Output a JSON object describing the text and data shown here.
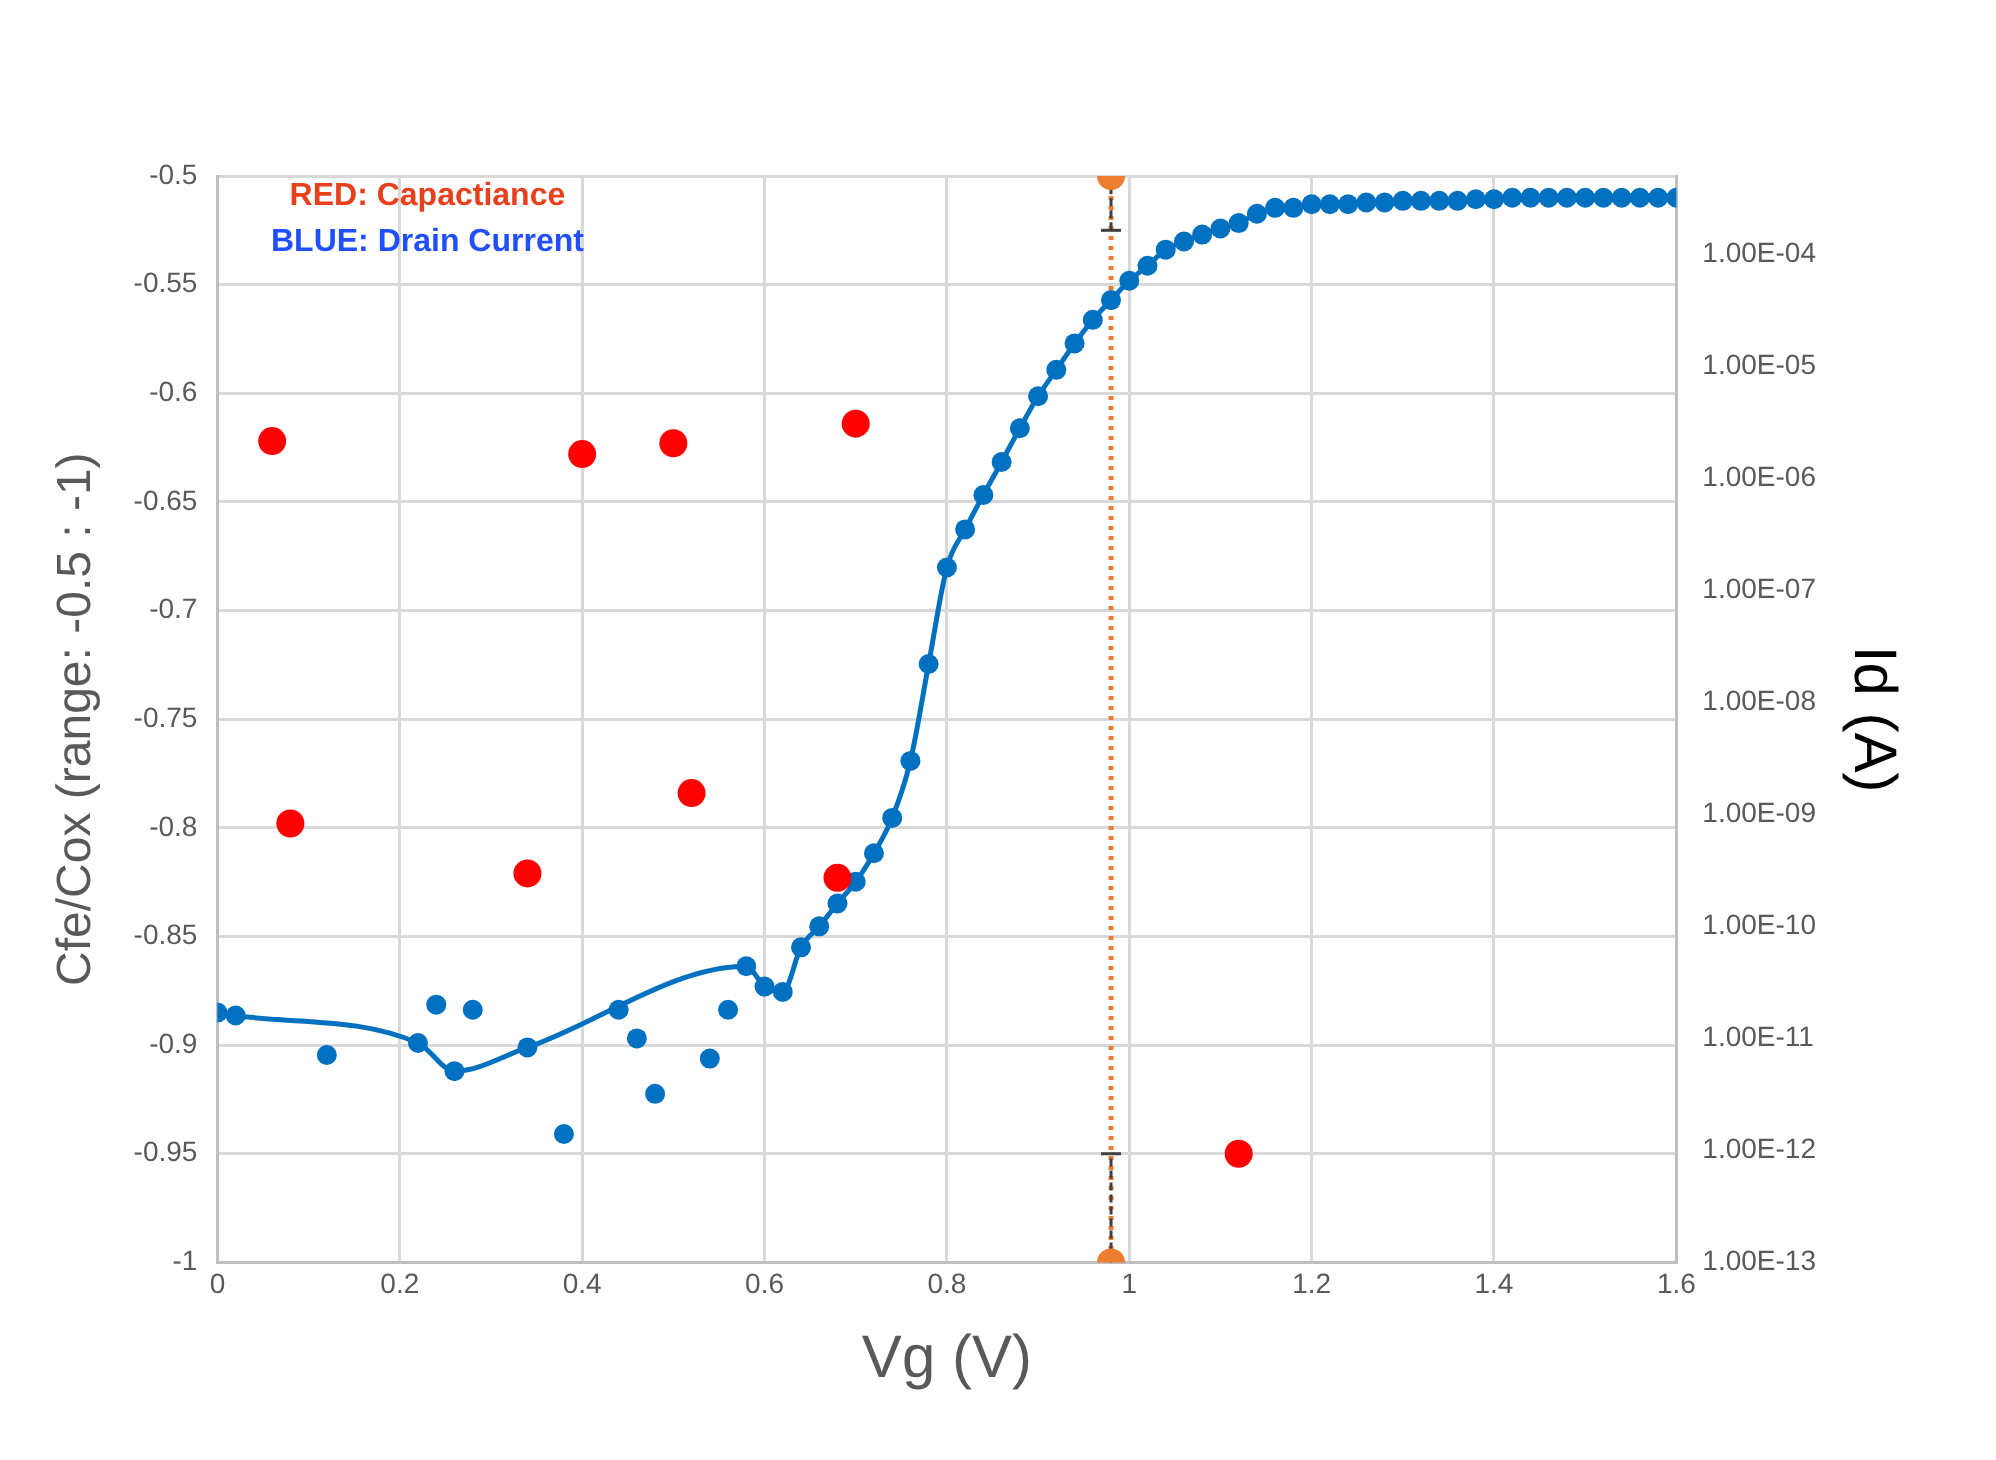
{
  "chart_data": {
    "type": "scatter",
    "xlabel": "Vg (V)",
    "ylabel": "Cfe/Cox (range: -0.5 : -1)",
    "y2label": "Id (A)",
    "xlim": [
      0,
      1.6
    ],
    "xticks": [
      0,
      0.2,
      0.4,
      0.6,
      0.8,
      1,
      1.2,
      1.4,
      1.6
    ],
    "ylim": [
      -1,
      -0.5
    ],
    "yticks": [
      -1,
      -0.95,
      -0.9,
      -0.85,
      -0.8,
      -0.75,
      -0.7,
      -0.65,
      -0.6,
      -0.55,
      -0.5
    ],
    "y2lim": [
      1e-13,
      0.0005
    ],
    "y2ticks": [
      {
        "value": 1e-13,
        "label": "1.00E-13"
      },
      {
        "value": 1e-12,
        "label": "1.00E-12"
      },
      {
        "value": 1e-11,
        "label": "1.00E-11"
      },
      {
        "value": 1e-10,
        "label": "1.00E-10"
      },
      {
        "value": 1e-09,
        "label": "1.00E-09"
      },
      {
        "value": 1e-08,
        "label": "1.00E-08"
      },
      {
        "value": 1e-07,
        "label": "1.00E-07"
      },
      {
        "value": 1e-06,
        "label": "1.00E-06"
      },
      {
        "value": 1e-05,
        "label": "1.00E-05"
      },
      {
        "value": 0.0001,
        "label": "1.00E-04"
      }
    ],
    "log": "y2",
    "grid": true,
    "legend": false,
    "marker": "circle",
    "ref_lines": [
      {
        "axis": "x",
        "value": 0.98,
        "color": "#ed7d31",
        "line_style": "dotted"
      }
    ],
    "annotations": [
      "RED: Capactiance",
      "BLUE: Drain Current"
    ],
    "series": [
      {
        "color": "#ff0000",
        "x": [
          0.06,
          0.08,
          0.34,
          0.4,
          0.5,
          0.52,
          0.68,
          0.7,
          1.12
        ],
        "values": [
          -0.622,
          -0.798,
          -0.821,
          -0.628,
          -0.623,
          -0.784,
          -0.823,
          -0.614,
          -0.95
        ]
      },
      {
        "type": "line",
        "axis": "y2",
        "color": "#0070c0",
        "x": [
          0,
          0.02,
          0.22,
          0.26,
          0.34,
          0.58,
          0.6,
          0.62,
          0.64,
          0.66,
          0.68,
          0.7,
          0.72,
          0.74,
          0.76,
          0.78,
          0.8,
          0.82,
          0.84,
          0.86,
          0.88,
          0.9,
          0.92,
          0.94,
          0.96,
          0.98,
          1,
          1.02,
          1.04,
          1.06,
          1.08,
          1.1,
          1.12,
          1.14,
          1.16,
          1.18,
          1.2,
          1.22,
          1.24,
          1.26,
          1.28,
          1.3,
          1.32,
          1.34,
          1.36,
          1.38,
          1.4,
          1.42,
          1.44,
          1.46,
          1.48,
          1.5,
          1.52,
          1.54,
          1.56,
          1.58,
          1.6
        ],
        "values": [
          1.7e-11,
          1.6e-11,
          9.1e-12,
          5.1e-12,
          8.3e-12,
          4.4e-11,
          2.9e-11,
          2.6e-11,
          6.5e-11,
          1e-10,
          1.6e-10,
          2.5e-10,
          4.5e-10,
          9.3e-10,
          3e-09,
          2.2e-08,
          1.6e-07,
          3.5e-07,
          7.1e-07,
          1.4e-06,
          2.8e-06,
          5.4e-06,
          9.3e-06,
          1.6e-05,
          2.6e-05,
          3.9e-05,
          5.8e-05,
          7.9e-05,
          0.00011,
          0.00013,
          0.00015,
          0.00017,
          0.00019,
          0.00023,
          0.00026,
          0.00026,
          0.00028,
          0.00028,
          0.00028,
          0.00029,
          0.00029,
          0.0003,
          0.0003,
          0.0003,
          0.0003,
          0.00031,
          0.00031,
          0.00032,
          0.00032,
          0.00032,
          0.00032,
          0.00032,
          0.00032,
          0.00032,
          0.00032,
          0.00032,
          0.00032
        ]
      },
      {
        "axis": "y2",
        "color": "#0070c0",
        "x": [
          0.12,
          0.24,
          0.28,
          0.38,
          0.44,
          0.46,
          0.48,
          0.54,
          0.56
        ],
        "values": [
          7.1e-12,
          2e-11,
          1.8e-11,
          1.4e-12,
          1.8e-11,
          1e-11,
          3.2e-12,
          6.6e-12,
          1.8e-11
        ]
      },
      {
        "color": "#ed7d31",
        "x": [
          0.98,
          0.98
        ],
        "values": [
          -0.5,
          -1
        ],
        "errors": [
          [
            -0.525,
            -0.5
          ],
          [
            -1,
            -0.95
          ]
        ]
      }
    ]
  }
}
